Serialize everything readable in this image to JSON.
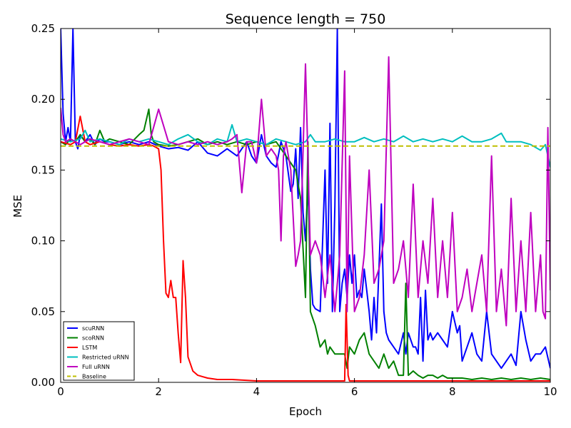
{
  "chart_data": {
    "type": "line",
    "title": "Sequence length = 750",
    "xlabel": "Epoch",
    "ylabel": "MSE",
    "xlim": [
      0,
      10
    ],
    "ylim": [
      0,
      0.25
    ],
    "xticks": [
      "0",
      "2",
      "4",
      "6",
      "8",
      "10"
    ],
    "yticks": [
      "0.00",
      "0.05",
      "0.10",
      "0.15",
      "0.20",
      "0.25"
    ],
    "grid": false,
    "legend_position": "lower-left",
    "series": [
      {
        "name": "scuRNN",
        "color": "#0000ff",
        "x": [
          0.0,
          0.05,
          0.1,
          0.15,
          0.2,
          0.25,
          0.3,
          0.35,
          0.4,
          0.5,
          0.6,
          0.7,
          0.8,
          0.9,
          1.0,
          1.2,
          1.4,
          1.6,
          1.8,
          2.0,
          2.2,
          2.4,
          2.5,
          2.6,
          2.7,
          2.8,
          3.0,
          3.2,
          3.4,
          3.6,
          3.7,
          3.8,
          3.9,
          4.0,
          4.1,
          4.2,
          4.3,
          4.4,
          4.5,
          4.6,
          4.7,
          4.75,
          4.8,
          4.85,
          4.9,
          4.95,
          5.0,
          5.05,
          5.1,
          5.15,
          5.2,
          5.3,
          5.4,
          5.45,
          5.5,
          5.55,
          5.6,
          5.65,
          5.7,
          5.75,
          5.8,
          5.85,
          5.9,
          5.95,
          6.0,
          6.05,
          6.1,
          6.15,
          6.2,
          6.25,
          6.3,
          6.35,
          6.4,
          6.45,
          6.5,
          6.55,
          6.6,
          6.65,
          6.7,
          6.8,
          6.9,
          7.0,
          7.05,
          7.1,
          7.15,
          7.2,
          7.25,
          7.3,
          7.35,
          7.4,
          7.45,
          7.5,
          7.55,
          7.6,
          7.7,
          7.8,
          7.9,
          8.0,
          8.1,
          8.15,
          8.2,
          8.3,
          8.4,
          8.5,
          8.6,
          8.7,
          8.8,
          8.9,
          9.0,
          9.1,
          9.2,
          9.3,
          9.4,
          9.5,
          9.6,
          9.7,
          9.8,
          9.9,
          10.0
        ],
        "values": [
          0.25,
          0.19,
          0.17,
          0.18,
          0.17,
          0.25,
          0.17,
          0.165,
          0.175,
          0.17,
          0.175,
          0.168,
          0.172,
          0.17,
          0.17,
          0.168,
          0.17,
          0.168,
          0.17,
          0.167,
          0.165,
          0.166,
          0.165,
          0.164,
          0.167,
          0.17,
          0.162,
          0.16,
          0.165,
          0.16,
          0.165,
          0.17,
          0.16,
          0.155,
          0.175,
          0.16,
          0.155,
          0.152,
          0.17,
          0.16,
          0.135,
          0.14,
          0.165,
          0.13,
          0.18,
          0.12,
          0.1,
          0.14,
          0.08,
          0.055,
          0.052,
          0.05,
          0.15,
          0.07,
          0.183,
          0.05,
          0.125,
          0.25,
          0.05,
          0.07,
          0.08,
          0.06,
          0.09,
          0.07,
          0.09,
          0.06,
          0.065,
          0.06,
          0.08,
          0.065,
          0.05,
          0.03,
          0.06,
          0.035,
          0.08,
          0.126,
          0.05,
          0.035,
          0.03,
          0.025,
          0.02,
          0.035,
          0.02,
          0.035,
          0.03,
          0.025,
          0.025,
          0.02,
          0.06,
          0.015,
          0.065,
          0.03,
          0.035,
          0.03,
          0.035,
          0.03,
          0.025,
          0.05,
          0.035,
          0.04,
          0.015,
          0.025,
          0.035,
          0.02,
          0.015,
          0.05,
          0.02,
          0.015,
          0.01,
          0.015,
          0.02,
          0.012,
          0.05,
          0.03,
          0.015,
          0.02,
          0.02,
          0.025,
          0.01
        ]
      },
      {
        "name": "scoRNN",
        "color": "#008000",
        "x": [
          0.0,
          0.1,
          0.2,
          0.3,
          0.4,
          0.5,
          0.6,
          0.7,
          0.8,
          0.9,
          1.0,
          1.2,
          1.4,
          1.6,
          1.7,
          1.8,
          1.85,
          1.9,
          2.0,
          2.2,
          2.4,
          2.6,
          2.8,
          3.0,
          3.2,
          3.4,
          3.6,
          3.8,
          4.0,
          4.2,
          4.4,
          4.5,
          4.6,
          4.7,
          4.8,
          4.9,
          5.0,
          5.05,
          5.1,
          5.2,
          5.3,
          5.4,
          5.45,
          5.5,
          5.6,
          5.7,
          5.8,
          5.85,
          5.9,
          6.0,
          6.1,
          6.2,
          6.3,
          6.4,
          6.5,
          6.6,
          6.7,
          6.8,
          6.9,
          7.0,
          7.05,
          7.1,
          7.2,
          7.3,
          7.4,
          7.5,
          7.6,
          7.7,
          7.8,
          7.9,
          8.0,
          8.2,
          8.4,
          8.6,
          8.8,
          9.0,
          9.2,
          9.4,
          9.6,
          9.8,
          10.0
        ],
        "values": [
          0.17,
          0.168,
          0.172,
          0.17,
          0.175,
          0.17,
          0.172,
          0.168,
          0.178,
          0.17,
          0.172,
          0.17,
          0.168,
          0.175,
          0.178,
          0.193,
          0.175,
          0.17,
          0.168,
          0.167,
          0.168,
          0.17,
          0.172,
          0.168,
          0.17,
          0.168,
          0.17,
          0.168,
          0.17,
          0.168,
          0.17,
          0.165,
          0.16,
          0.155,
          0.15,
          0.13,
          0.06,
          0.17,
          0.05,
          0.04,
          0.025,
          0.03,
          0.02,
          0.025,
          0.02,
          0.02,
          0.02,
          0.01,
          0.025,
          0.02,
          0.03,
          0.035,
          0.02,
          0.015,
          0.01,
          0.02,
          0.01,
          0.015,
          0.005,
          0.005,
          0.07,
          0.005,
          0.008,
          0.005,
          0.003,
          0.005,
          0.005,
          0.003,
          0.005,
          0.003,
          0.003,
          0.003,
          0.002,
          0.003,
          0.002,
          0.003,
          0.002,
          0.003,
          0.002,
          0.003,
          0.002
        ]
      },
      {
        "name": "LSTM",
        "color": "#ff0000",
        "x": [
          0.0,
          0.2,
          0.3,
          0.4,
          0.5,
          0.6,
          0.8,
          1.0,
          1.2,
          1.4,
          1.6,
          1.8,
          1.9,
          2.0,
          2.05,
          2.1,
          2.15,
          2.2,
          2.25,
          2.3,
          2.35,
          2.4,
          2.45,
          2.5,
          2.55,
          2.6,
          2.7,
          2.8,
          2.9,
          3.0,
          3.2,
          3.5,
          4.0,
          4.5,
          5.0,
          5.5,
          5.8,
          5.83,
          5.87,
          5.9,
          6.0,
          7.0,
          8.0,
          9.0,
          10.0
        ],
        "values": [
          0.17,
          0.168,
          0.17,
          0.188,
          0.17,
          0.168,
          0.17,
          0.168,
          0.167,
          0.168,
          0.167,
          0.168,
          0.167,
          0.165,
          0.15,
          0.1,
          0.063,
          0.06,
          0.072,
          0.06,
          0.06,
          0.035,
          0.014,
          0.086,
          0.06,
          0.018,
          0.008,
          0.005,
          0.004,
          0.003,
          0.002,
          0.002,
          0.001,
          0.001,
          0.001,
          0.001,
          0.001,
          0.055,
          0.005,
          0.001,
          0.001,
          0.001,
          0.001,
          0.001,
          0.001
        ]
      },
      {
        "name": "Restricted uRNN",
        "color": "#00bfbf",
        "x": [
          0.0,
          0.2,
          0.4,
          0.5,
          0.6,
          0.8,
          1.0,
          1.2,
          1.4,
          1.6,
          1.8,
          2.0,
          2.2,
          2.4,
          2.6,
          2.8,
          3.0,
          3.2,
          3.4,
          3.5,
          3.6,
          3.8,
          4.0,
          4.2,
          4.4,
          4.6,
          4.8,
          5.0,
          5.1,
          5.2,
          5.4,
          5.6,
          5.8,
          6.0,
          6.2,
          6.4,
          6.6,
          6.8,
          7.0,
          7.2,
          7.4,
          7.6,
          7.8,
          8.0,
          8.2,
          8.4,
          8.6,
          8.8,
          9.0,
          9.1,
          9.2,
          9.4,
          9.6,
          9.7,
          9.8,
          9.9,
          10.0
        ],
        "values": [
          0.172,
          0.17,
          0.172,
          0.178,
          0.17,
          0.172,
          0.17,
          0.168,
          0.172,
          0.17,
          0.172,
          0.17,
          0.168,
          0.172,
          0.175,
          0.17,
          0.168,
          0.172,
          0.17,
          0.182,
          0.17,
          0.172,
          0.17,
          0.168,
          0.172,
          0.17,
          0.168,
          0.17,
          0.175,
          0.17,
          0.17,
          0.172,
          0.17,
          0.17,
          0.173,
          0.17,
          0.172,
          0.17,
          0.174,
          0.17,
          0.172,
          0.17,
          0.172,
          0.17,
          0.174,
          0.17,
          0.17,
          0.172,
          0.176,
          0.17,
          0.17,
          0.17,
          0.168,
          0.166,
          0.164,
          0.168,
          0.152
        ]
      },
      {
        "name": "Full uRNN",
        "color": "#bf00bf",
        "x": [
          0.0,
          0.05,
          0.1,
          0.2,
          0.3,
          0.4,
          0.5,
          0.6,
          0.8,
          1.0,
          1.2,
          1.4,
          1.6,
          1.8,
          2.0,
          2.2,
          2.4,
          2.6,
          2.8,
          3.0,
          3.2,
          3.4,
          3.5,
          3.6,
          3.7,
          3.8,
          3.9,
          4.0,
          4.1,
          4.2,
          4.3,
          4.4,
          4.45,
          4.5,
          4.55,
          4.6,
          4.7,
          4.8,
          4.85,
          4.9,
          5.0,
          5.1,
          5.2,
          5.3,
          5.4,
          5.5,
          5.6,
          5.7,
          5.8,
          5.85,
          5.9,
          6.0,
          6.1,
          6.2,
          6.3,
          6.4,
          6.5,
          6.6,
          6.7,
          6.8,
          6.9,
          7.0,
          7.1,
          7.2,
          7.3,
          7.4,
          7.5,
          7.6,
          7.7,
          7.8,
          7.9,
          8.0,
          8.1,
          8.2,
          8.3,
          8.4,
          8.5,
          8.6,
          8.7,
          8.8,
          8.9,
          9.0,
          9.1,
          9.2,
          9.3,
          9.4,
          9.5,
          9.6,
          9.7,
          9.8,
          9.85,
          9.9,
          9.95,
          10.0
        ],
        "values": [
          0.194,
          0.175,
          0.17,
          0.172,
          0.17,
          0.168,
          0.17,
          0.172,
          0.17,
          0.168,
          0.17,
          0.172,
          0.17,
          0.168,
          0.193,
          0.17,
          0.168,
          0.17,
          0.168,
          0.17,
          0.168,
          0.17,
          0.172,
          0.175,
          0.134,
          0.17,
          0.17,
          0.155,
          0.2,
          0.16,
          0.165,
          0.16,
          0.15,
          0.1,
          0.16,
          0.17,
          0.15,
          0.082,
          0.09,
          0.1,
          0.225,
          0.09,
          0.1,
          0.09,
          0.06,
          0.09,
          0.05,
          0.09,
          0.22,
          0.05,
          0.16,
          0.05,
          0.06,
          0.09,
          0.15,
          0.07,
          0.08,
          0.1,
          0.23,
          0.07,
          0.08,
          0.1,
          0.06,
          0.14,
          0.06,
          0.1,
          0.07,
          0.13,
          0.06,
          0.1,
          0.06,
          0.12,
          0.05,
          0.06,
          0.08,
          0.05,
          0.07,
          0.09,
          0.05,
          0.16,
          0.05,
          0.08,
          0.04,
          0.13,
          0.05,
          0.1,
          0.05,
          0.12,
          0.05,
          0.09,
          0.05,
          0.045,
          0.18,
          0.065
        ]
      },
      {
        "name": "Baseline",
        "color": "#bfbf00",
        "dashed": true,
        "x": [
          0,
          10
        ],
        "values": [
          0.167,
          0.167
        ]
      }
    ]
  }
}
